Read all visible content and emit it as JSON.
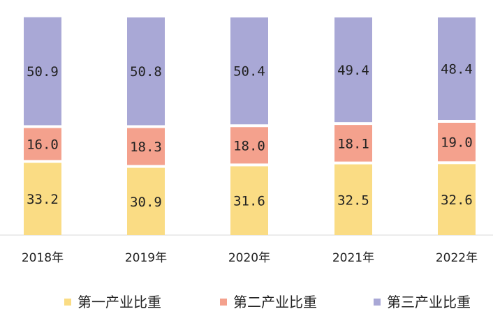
{
  "chart_data": {
    "type": "bar",
    "stacked": true,
    "percent_stacked": true,
    "categories": [
      "2018年",
      "2019年",
      "2020年",
      "2021年",
      "2022年"
    ],
    "series": [
      {
        "name": "第一产业比重",
        "color": "#FADC84",
        "values": [
          33.2,
          30.9,
          31.6,
          32.5,
          32.6
        ]
      },
      {
        "name": "第二产业比重",
        "color": "#F4A18D",
        "values": [
          16.0,
          18.3,
          18.0,
          18.1,
          19.0
        ]
      },
      {
        "name": "第三产业比重",
        "color": "#A9A8D6",
        "values": [
          50.9,
          50.8,
          50.4,
          49.4,
          48.4
        ]
      }
    ],
    "ylim": [
      0,
      100
    ],
    "data_labels": [
      "33.2",
      "30.9",
      "31.6",
      "32.5",
      "32.6",
      "16.0",
      "18.3",
      "18.0",
      "18.1",
      "19.0",
      "50.9",
      "50.8",
      "50.4",
      "49.4",
      "48.4"
    ],
    "grid": false,
    "legend_position": "bottom"
  }
}
